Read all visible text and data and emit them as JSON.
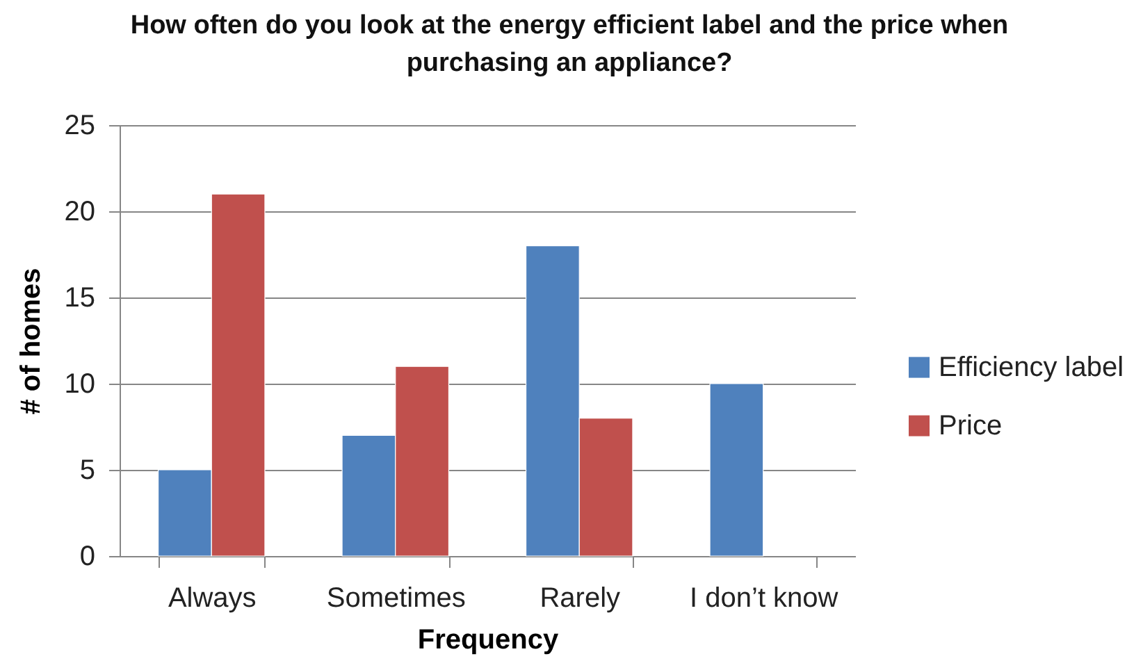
{
  "chart_data": {
    "type": "bar",
    "title": "How often do you look at the energy efficient label and the price when purchasing an appliance?",
    "xlabel": "Frequency",
    "ylabel": "# of homes",
    "categories": [
      "Always",
      "Sometimes",
      "Rarely",
      "I don’t know"
    ],
    "series": [
      {
        "name": "Efficiency label",
        "color": "#4f81bd",
        "values": [
          5,
          7,
          18,
          10
        ]
      },
      {
        "name": "Price",
        "color": "#c0504d",
        "values": [
          21,
          11,
          8,
          null
        ]
      }
    ],
    "ylim": [
      0,
      25
    ],
    "yticks": [
      0,
      5,
      10,
      15,
      20,
      25
    ],
    "grid": "y",
    "legend": "right"
  }
}
